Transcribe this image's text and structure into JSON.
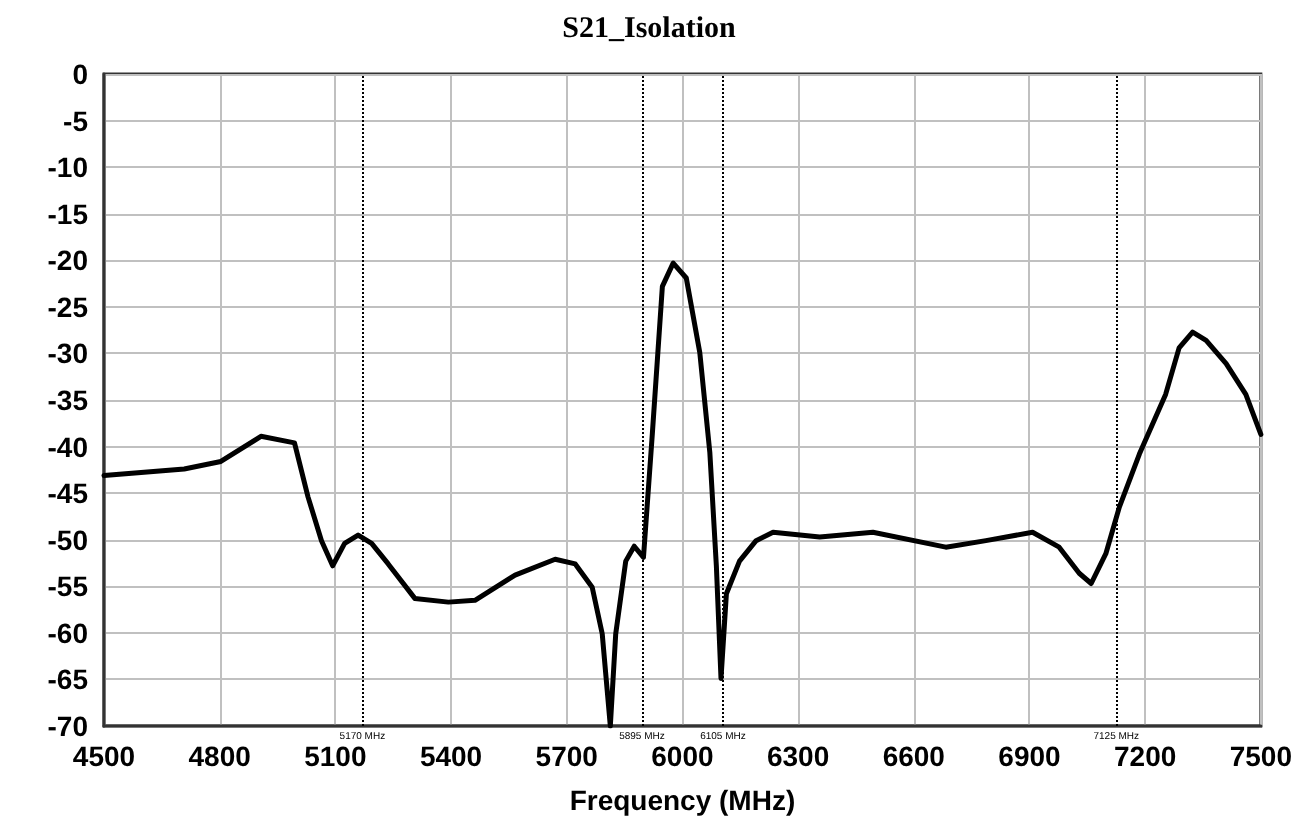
{
  "chart_data": {
    "type": "line",
    "title": "S21_Isolation",
    "xlabel": "Frequency (MHz)",
    "series": [
      {
        "color": "#000000",
        "x": [
          4500,
          4708,
          4803,
          4907,
          4994,
          5029,
          5064,
          5093,
          5124,
          5159,
          5194,
          5237,
          5306,
          5393,
          5462,
          5566,
          5670,
          5722,
          5766,
          5792,
          5813,
          5827,
          5853,
          5875,
          5899,
          5922,
          5948,
          5976,
          6010,
          6045,
          6071,
          6088,
          6100,
          6114,
          6148,
          6191,
          6235,
          6356,
          6494,
          6683,
          6787,
          6908,
          6977,
          7029,
          7060,
          7098,
          7133,
          7185,
          7253,
          7288,
          7323,
          7358,
          7410,
          7461,
          7500
        ],
        "values": [
          -43.1,
          -42.4,
          -41.6,
          -38.9,
          -39.6,
          -45.4,
          -50.1,
          -52.8,
          -50.4,
          -49.5,
          -50.4,
          -52.6,
          -56.3,
          -56.7,
          -56.5,
          -53.8,
          -52.1,
          -52.6,
          -55.1,
          -60.1,
          -70,
          -60.1,
          -52.3,
          -50.7,
          -51.9,
          -38.6,
          -22.8,
          -20.3,
          -21.9,
          -29.9,
          -40.6,
          -52.8,
          -64.9,
          -55.8,
          -52.3,
          -50.1,
          -49.2,
          -49.7,
          -49.2,
          -50.8,
          -50.1,
          -49.2,
          -50.8,
          -53.6,
          -54.7,
          -51.5,
          -46.5,
          -40.8,
          -34.4,
          -29.4,
          -27.7,
          -28.6,
          -31.1,
          -34.4,
          -38.7
        ]
      }
    ],
    "xlim": [
      4500,
      7500
    ],
    "xticks": [
      4500,
      4800,
      5100,
      5400,
      5700,
      6000,
      6300,
      6600,
      6900,
      7200,
      7500
    ],
    "ylim": [
      -70,
      0
    ],
    "yticks": [
      -70,
      -65,
      -60,
      -55,
      -50,
      -45,
      -40,
      -35,
      -30,
      -25,
      -20,
      -15,
      -10,
      -5,
      0
    ],
    "grid": true,
    "marker": "none",
    "line_style": "solid",
    "ref_lines": [
      {
        "axis": "x",
        "value": 5170,
        "label": "5170 MHz",
        "color": "#000000",
        "line_style": "dotted"
      },
      {
        "axis": "x",
        "value": 5895,
        "label": "5895 MHz",
        "color": "#000000",
        "line_style": "dotted"
      },
      {
        "axis": "x",
        "value": 6105,
        "label": "6105 MHz",
        "color": "#000000",
        "line_style": "dotted"
      },
      {
        "axis": "x",
        "value": 7125,
        "label": "7125 MHz",
        "color": "#000000",
        "line_style": "dotted"
      }
    ]
  }
}
